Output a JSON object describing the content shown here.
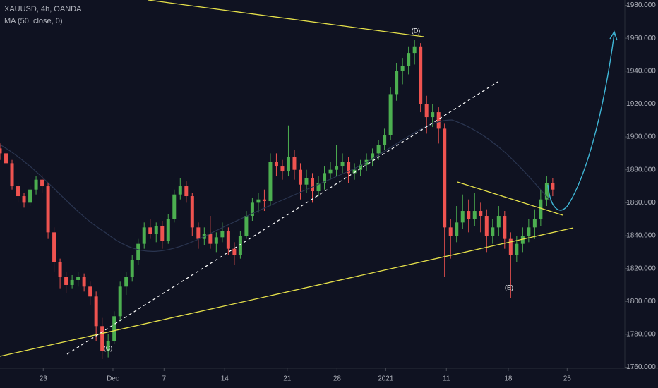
{
  "chart_data": {
    "type": "candlestick",
    "title": "XAUUSD, 4h, OANDA",
    "subtitle": "MA (50, close, 0)",
    "up_color": "#4caf50",
    "down_color": "#ef5350",
    "xlim": [
      0,
      104
    ],
    "xticks": [
      {
        "value": 7.2,
        "label": "23"
      },
      {
        "value": 18.8,
        "label": "Dec"
      },
      {
        "value": 27.3,
        "label": "7"
      },
      {
        "value": 37.4,
        "label": "14"
      },
      {
        "value": 47.8,
        "label": "21"
      },
      {
        "value": 56.1,
        "label": "28"
      },
      {
        "value": 64.2,
        "label": "2021"
      },
      {
        "value": 74.3,
        "label": "11"
      },
      {
        "value": 84.6,
        "label": "18"
      },
      {
        "value": 94.4,
        "label": "25"
      }
    ],
    "ylim": [
      1759.4,
      1983.2
    ],
    "yticks": [
      {
        "value": 1760,
        "label": "1760.000"
      },
      {
        "value": 1780,
        "label": "1780.000"
      },
      {
        "value": 1800,
        "label": "1800.000"
      },
      {
        "value": 1820,
        "label": "1820.000"
      },
      {
        "value": 1840,
        "label": "1840.000"
      },
      {
        "value": 1860,
        "label": "1860.000"
      },
      {
        "value": 1880,
        "label": "1880.000"
      },
      {
        "value": 1900,
        "label": "1900.000"
      },
      {
        "value": 1920,
        "label": "1920.000"
      },
      {
        "value": 1940,
        "label": "1940.000"
      },
      {
        "value": 1960,
        "label": "1960.000"
      },
      {
        "value": 1980,
        "label": "1980.000"
      }
    ],
    "annotations": [
      "(C)",
      "(D)",
      "(E)"
    ],
    "ohlc": [
      [
        1893,
        1896,
        1886,
        1890
      ],
      [
        1890,
        1892,
        1880,
        1884
      ],
      [
        1884,
        1886,
        1868,
        1870
      ],
      [
        1870,
        1872,
        1860,
        1864
      ],
      [
        1864,
        1866,
        1857,
        1860
      ],
      [
        1860,
        1870,
        1858,
        1868
      ],
      [
        1868,
        1876,
        1865,
        1874
      ],
      [
        1874,
        1877,
        1866,
        1870
      ],
      [
        1870,
        1872,
        1838,
        1842
      ],
      [
        1842,
        1845,
        1818,
        1824
      ],
      [
        1824,
        1826,
        1808,
        1815
      ],
      [
        1815,
        1818,
        1805,
        1810
      ],
      [
        1810,
        1816,
        1808,
        1813
      ],
      [
        1813,
        1818,
        1809,
        1815
      ],
      [
        1815,
        1817,
        1806,
        1809
      ],
      [
        1809,
        1812,
        1798,
        1803
      ],
      [
        1803,
        1806,
        1776,
        1785
      ],
      [
        1785,
        1790,
        1765,
        1770
      ],
      [
        1770,
        1780,
        1766,
        1776
      ],
      [
        1776,
        1794,
        1774,
        1791
      ],
      [
        1791,
        1812,
        1788,
        1809
      ],
      [
        1809,
        1818,
        1804,
        1815
      ],
      [
        1815,
        1828,
        1812,
        1825
      ],
      [
        1825,
        1838,
        1822,
        1835
      ],
      [
        1835,
        1848,
        1832,
        1845
      ],
      [
        1845,
        1850,
        1838,
        1841
      ],
      [
        1841,
        1848,
        1836,
        1846
      ],
      [
        1846,
        1849,
        1832,
        1837
      ],
      [
        1837,
        1853,
        1835,
        1850
      ],
      [
        1850,
        1868,
        1848,
        1865
      ],
      [
        1865,
        1875,
        1862,
        1870
      ],
      [
        1870,
        1873,
        1860,
        1864
      ],
      [
        1864,
        1866,
        1840,
        1845
      ],
      [
        1845,
        1848,
        1832,
        1838
      ],
      [
        1838,
        1845,
        1834,
        1841
      ],
      [
        1841,
        1852,
        1832,
        1835
      ],
      [
        1835,
        1842,
        1830,
        1839
      ],
      [
        1839,
        1848,
        1836,
        1843
      ],
      [
        1843,
        1845,
        1828,
        1832
      ],
      [
        1832,
        1836,
        1822,
        1828
      ],
      [
        1828,
        1843,
        1826,
        1840
      ],
      [
        1840,
        1855,
        1838,
        1852
      ],
      [
        1852,
        1863,
        1849,
        1860
      ],
      [
        1860,
        1866,
        1854,
        1862
      ],
      [
        1862,
        1868,
        1855,
        1861
      ],
      [
        1861,
        1890,
        1858,
        1885
      ],
      [
        1885,
        1890,
        1876,
        1882
      ],
      [
        1882,
        1886,
        1874,
        1879
      ],
      [
        1879,
        1907,
        1876,
        1888
      ],
      [
        1888,
        1892,
        1874,
        1880
      ],
      [
        1880,
        1884,
        1862,
        1871
      ],
      [
        1871,
        1880,
        1866,
        1875
      ],
      [
        1875,
        1878,
        1860,
        1867
      ],
      [
        1867,
        1876,
        1864,
        1872
      ],
      [
        1872,
        1882,
        1868,
        1878
      ],
      [
        1878,
        1885,
        1874,
        1880
      ],
      [
        1880,
        1895,
        1876,
        1882
      ],
      [
        1882,
        1890,
        1878,
        1885
      ],
      [
        1885,
        1888,
        1872,
        1878
      ],
      [
        1878,
        1884,
        1874,
        1880
      ],
      [
        1880,
        1886,
        1876,
        1883
      ],
      [
        1883,
        1890,
        1879,
        1886
      ],
      [
        1886,
        1893,
        1882,
        1890
      ],
      [
        1890,
        1898,
        1886,
        1895
      ],
      [
        1895,
        1905,
        1892,
        1901
      ],
      [
        1901,
        1930,
        1898,
        1926
      ],
      [
        1926,
        1945,
        1922,
        1940
      ],
      [
        1940,
        1948,
        1932,
        1943
      ],
      [
        1943,
        1955,
        1938,
        1951
      ],
      [
        1951,
        1959,
        1944,
        1955
      ],
      [
        1955,
        1957,
        1915,
        1920
      ],
      [
        1920,
        1925,
        1902,
        1912
      ],
      [
        1912,
        1920,
        1906,
        1915
      ],
      [
        1915,
        1918,
        1896,
        1905
      ],
      [
        1905,
        1908,
        1815,
        1845
      ],
      [
        1845,
        1850,
        1826,
        1840
      ],
      [
        1840,
        1858,
        1836,
        1848
      ],
      [
        1848,
        1865,
        1844,
        1855
      ],
      [
        1855,
        1862,
        1842,
        1850
      ],
      [
        1850,
        1866,
        1846,
        1855
      ],
      [
        1855,
        1860,
        1842,
        1852
      ],
      [
        1852,
        1856,
        1830,
        1840
      ],
      [
        1840,
        1850,
        1835,
        1845
      ],
      [
        1845,
        1858,
        1840,
        1852
      ],
      [
        1852,
        1855,
        1832,
        1838
      ],
      [
        1838,
        1842,
        1802,
        1828
      ],
      [
        1828,
        1840,
        1824,
        1835
      ],
      [
        1835,
        1845,
        1830,
        1840
      ],
      [
        1840,
        1850,
        1836,
        1845
      ],
      [
        1845,
        1856,
        1838,
        1850
      ],
      [
        1850,
        1868,
        1846,
        1862
      ],
      [
        1862,
        1876,
        1858,
        1872
      ],
      [
        1872,
        1875,
        1864,
        1868
      ]
    ]
  }
}
